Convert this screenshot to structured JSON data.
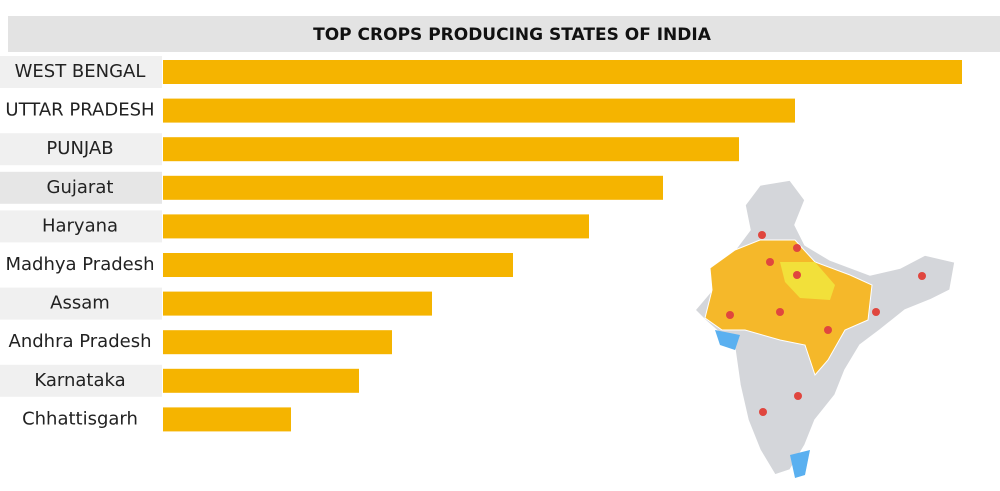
{
  "chart_data": {
    "type": "bar",
    "orientation": "horizontal",
    "title": "TOP CROPS PRODUCING STATES OF INDIA",
    "categories": [
      "WEST BENGAL",
      "UTTAR PRADESH",
      "PUNJAB",
      "Gujarat",
      "Haryana",
      "Madhya Pradesh",
      "Assam",
      "Andhra Pradesh",
      "Karnataka",
      "Chhattisgarh"
    ],
    "values": [
      799,
      632,
      576,
      500,
      426,
      350,
      269,
      229,
      196,
      128
    ],
    "color": "#f5b400",
    "xlim": [
      0,
      800
    ]
  }
}
